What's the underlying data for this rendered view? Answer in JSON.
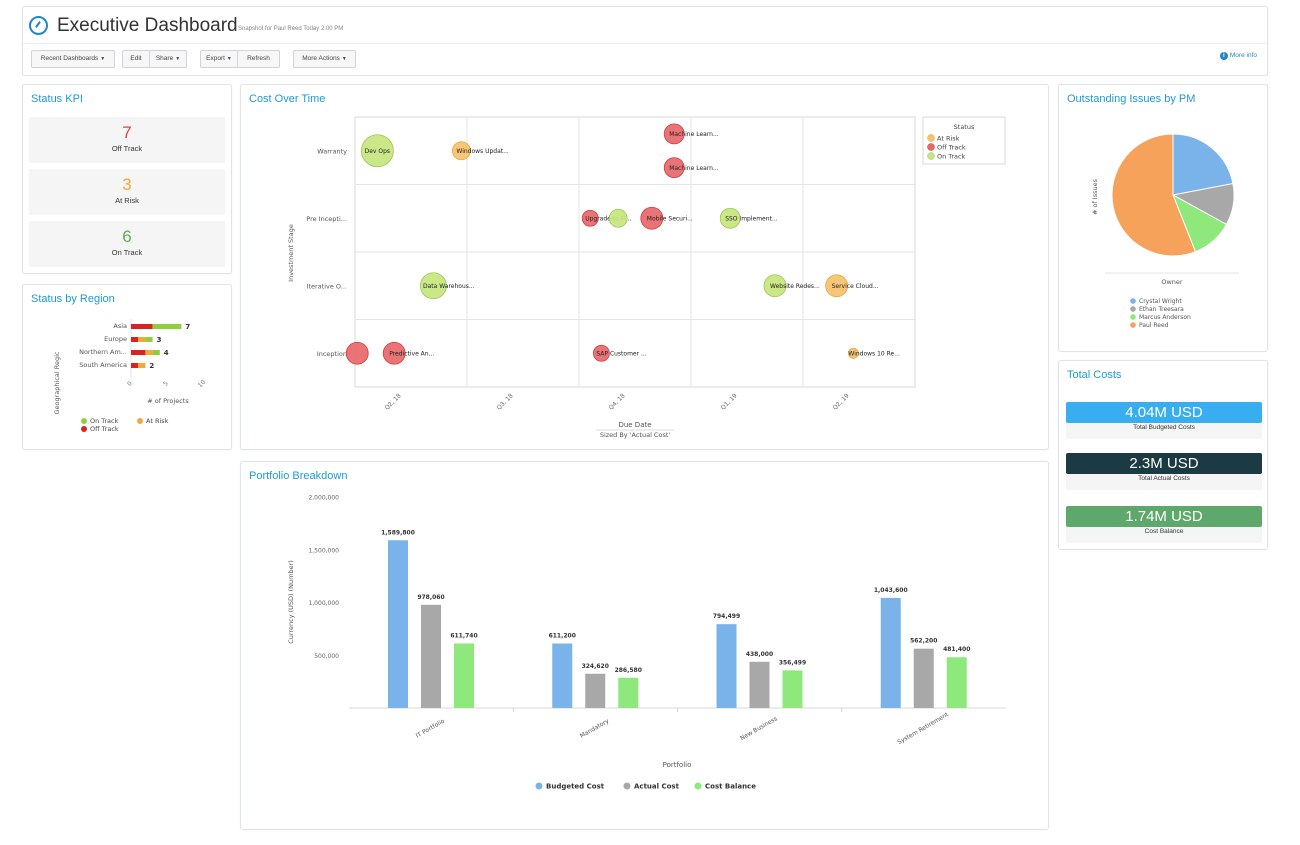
{
  "header": {
    "title": "Executive Dashboard",
    "subtitle": "Snapshot for Paul Reed Today 2:00 PM",
    "buttons": {
      "recent": "Recent Dashboards",
      "edit": "Edit",
      "share": "Share",
      "export": "Export",
      "refresh": "Refresh",
      "more_actions": "More Actions"
    },
    "more_info": "More info",
    "info_glyph": "i"
  },
  "status_kpi": {
    "title": "Status KPI",
    "items": [
      {
        "value": "7",
        "label": "Off Track",
        "color": "#e0463c"
      },
      {
        "value": "3",
        "label": "At Risk",
        "color": "#f4a83a"
      },
      {
        "value": "6",
        "label": "On Track",
        "color": "#5fae4c"
      }
    ]
  },
  "status_by_region": {
    "title": "Status by Region",
    "ylabel": "Geographical Regic",
    "xlabel": "# of Projects",
    "x_ticks": [
      "0",
      "5",
      "10"
    ],
    "legend": [
      "On Track",
      "At Risk",
      "Off Track"
    ]
  },
  "cost_over_time": {
    "title": "Cost Over Time",
    "xlabel": "Due Date",
    "xlabel_sub": "Sized By 'Actual Cost'",
    "ylabel": "Investment Stage",
    "legend_title": "Status",
    "legend": [
      "At Risk",
      "Off Track",
      "On Track"
    ]
  },
  "portfolio_breakdown": {
    "title": "Portfolio Breakdown",
    "xlabel": "Portfolio",
    "ylabel": "Currency (USD) (Number)"
  },
  "outstanding_issues": {
    "title": "Outstanding Issues by PM",
    "ylabel": "# of Issues",
    "xlabel": "Owner"
  },
  "total_costs": {
    "title": "Total Costs",
    "items": [
      {
        "value": "4.04M USD",
        "label": "Total Budgeted Costs",
        "color": "#38aef0"
      },
      {
        "value": "2.3M USD",
        "label": "Total Actual Costs",
        "color": "#1c3a44"
      },
      {
        "value": "1.74M USD",
        "label": "Cost Balance",
        "color": "#5fa86b"
      }
    ]
  },
  "colors": {
    "accent": "#1e9ad6",
    "on_track": "#8fcf3c",
    "at_risk": "#f4a83a",
    "off_track": "#d9231f"
  },
  "chart_data": [
    {
      "id": "region",
      "type": "bar",
      "stacked": true,
      "orientation": "horizontal",
      "categories": [
        "Asia",
        "Europe",
        "Northern Am...",
        "South America"
      ],
      "totals": [
        "7",
        "3",
        "4",
        "2"
      ],
      "series": [
        {
          "name": "Off Track",
          "values": [
            3,
            1,
            2,
            1
          ],
          "color": "#d9231f"
        },
        {
          "name": "At Risk",
          "values": [
            0,
            1,
            1,
            1
          ],
          "color": "#f4a83a"
        },
        {
          "name": "On Track",
          "values": [
            4,
            1,
            1,
            0
          ],
          "color": "#8fcf3c"
        }
      ],
      "xlim": [
        0,
        10
      ]
    },
    {
      "id": "cost_over_time",
      "type": "scatter",
      "x_ticks": [
        "Q2, 18",
        "Q3, 18",
        "Q4, 18",
        "Q1, 19",
        "Q2, 19"
      ],
      "y_categories": [
        "Inception",
        "Iterative O...",
        "Pre Incepti...",
        "Warranty"
      ],
      "points": [
        {
          "label": "Dev Ops",
          "x": 0.2,
          "y": 3,
          "r": 16,
          "status": "On Track"
        },
        {
          "label": "Windows Updat...",
          "x": 0.95,
          "y": 3,
          "r": 9,
          "status": "At Risk"
        },
        {
          "label": "Machine Learn...",
          "x": 2.85,
          "y": 3.25,
          "r": 10,
          "status": "Off Track"
        },
        {
          "label": "Machine Learn...",
          "x": 2.85,
          "y": 2.75,
          "r": 10,
          "status": "Off Track"
        },
        {
          "label": "Upgrade to Fl...",
          "x": 2.1,
          "y": 2,
          "r": 8,
          "status": "Off Track"
        },
        {
          "label": "",
          "x": 2.35,
          "y": 2,
          "r": 9,
          "status": "On Track"
        },
        {
          "label": "Mobile Securi...",
          "x": 2.65,
          "y": 2,
          "r": 11,
          "status": "Off Track"
        },
        {
          "label": "SSO Implement...",
          "x": 3.35,
          "y": 2,
          "r": 10,
          "status": "On Track"
        },
        {
          "label": "Data Warehous...",
          "x": 0.7,
          "y": 1,
          "r": 13,
          "status": "On Track"
        },
        {
          "label": "Website Redes...",
          "x": 3.75,
          "y": 1,
          "r": 11,
          "status": "On Track"
        },
        {
          "label": "Service Cloud...",
          "x": 4.3,
          "y": 1,
          "r": 11,
          "status": "At Risk"
        },
        {
          "label": "",
          "x": 0.02,
          "y": 0,
          "r": 11,
          "status": "Off Track"
        },
        {
          "label": "Predictive An...",
          "x": 0.35,
          "y": 0,
          "r": 11,
          "status": "Off Track"
        },
        {
          "label": "SAP Customer ...",
          "x": 2.2,
          "y": 0,
          "r": 8,
          "status": "Off Track"
        },
        {
          "label": "Windows 10 Re...",
          "x": 4.45,
          "y": 0,
          "r": 5,
          "status": "At Risk"
        }
      ]
    },
    {
      "id": "portfolio",
      "type": "bar",
      "categories": [
        "IT Portfolio",
        "Mandatory",
        "New Business",
        "System Retirement"
      ],
      "series": [
        {
          "name": "Budgeted Cost",
          "values": [
            1589800,
            611200,
            794499,
            1043600
          ],
          "labels": [
            "1,589,800",
            "611,200",
            "794,499",
            "1,043,600"
          ],
          "color": "#7ab3ea"
        },
        {
          "name": "Actual Cost",
          "values": [
            978060,
            324620,
            438000,
            562200
          ],
          "labels": [
            "978,060",
            "324,620",
            "438,000",
            "562,200"
          ],
          "color": "#a8a8a8"
        },
        {
          "name": "Cost Balance",
          "values": [
            611740,
            286580,
            356499,
            481400
          ],
          "labels": [
            "611,740",
            "286,580",
            "356,499",
            "481,400"
          ],
          "color": "#8ee87c"
        }
      ],
      "y_ticks": [
        "500,000",
        "1,000,000",
        "1,500,000",
        "2,000,000"
      ],
      "ylim": [
        0,
        2000000
      ]
    },
    {
      "id": "issues",
      "type": "pie",
      "slices": [
        {
          "name": "Crystal Wright",
          "value": 22,
          "color": "#7ab3ea"
        },
        {
          "name": "Ethan Treesara",
          "value": 11,
          "color": "#a8a8a8"
        },
        {
          "name": "Marcus Anderson",
          "value": 11,
          "color": "#8ee87c"
        },
        {
          "name": "Paul Reed",
          "value": 56,
          "color": "#f6a25b"
        }
      ]
    }
  ]
}
